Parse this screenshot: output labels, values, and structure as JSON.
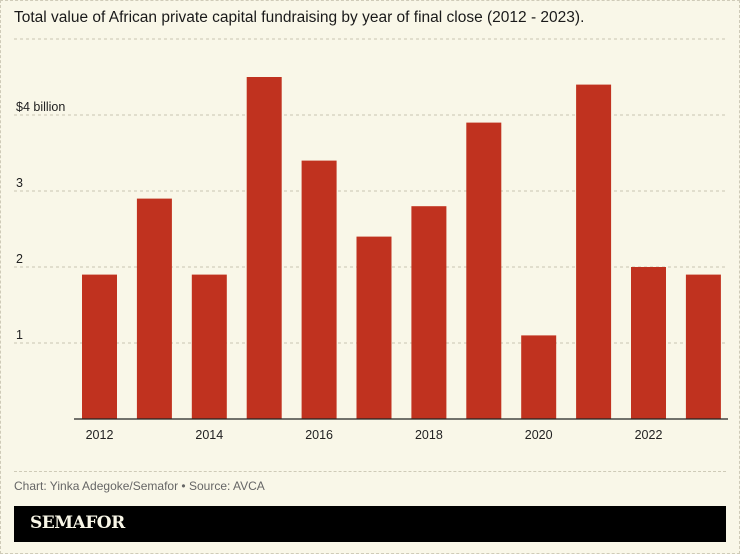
{
  "chart_data": {
    "type": "bar",
    "title": "Total value of African private capital fundraising by year of final close (2012 - 2023).",
    "categories": [
      "2012",
      "2013",
      "2014",
      "2015",
      "2016",
      "2017",
      "2018",
      "2019",
      "2020",
      "2021",
      "2022",
      "2023"
    ],
    "values": [
      1.9,
      2.9,
      1.9,
      4.5,
      3.4,
      2.4,
      2.8,
      3.9,
      1.1,
      4.4,
      2.0,
      1.9
    ],
    "xticks": [
      "2012",
      "2014",
      "2016",
      "2018",
      "2020",
      "2022"
    ],
    "yticks": [
      {
        "value": 1,
        "label": "1"
      },
      {
        "value": 2,
        "label": "2"
      },
      {
        "value": 3,
        "label": "3"
      },
      {
        "value": 4,
        "label": "$4 billion"
      },
      {
        "value": 5,
        "label": ""
      }
    ],
    "ylim": [
      0,
      5
    ],
    "xlabel": "",
    "ylabel": "",
    "grid": true,
    "bar_color": "#c0321f"
  },
  "credit": "Chart: Yinka Adegoke/Semafor • Source: AVCA",
  "logo": "SEMAFOR"
}
